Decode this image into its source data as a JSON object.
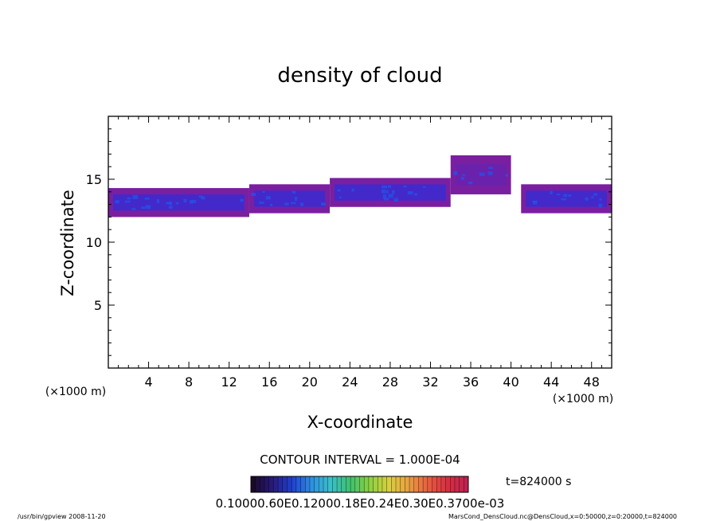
{
  "chart_data": {
    "type": "heatmap",
    "title": "density of cloud",
    "xlabel": "X-coordinate",
    "ylabel": "Z-coordinate",
    "x_unit_left": "(×1000 m)",
    "x_unit_right": "(×1000 m)",
    "xlim": [
      0,
      50
    ],
    "ylim": [
      0,
      20
    ],
    "xticks": [
      4,
      8,
      12,
      16,
      20,
      24,
      28,
      32,
      36,
      40,
      44,
      48
    ],
    "yticks": [
      5,
      10,
      15
    ],
    "contour_interval": "CONTOUR INTERVAL = 1.000E-04",
    "time_label": "t=824000 s",
    "colorbar_labels": [
      "0.1000E-05",
      "0.6000E-04",
      "0.1200E-03",
      "0.1800E-03",
      "0.2400E-03",
      "0.3000E-03",
      "0.3700E-03"
    ],
    "colorbar_label_text": "0.10000.60E0.12000.18E0.24E0.30E0.3700e-03",
    "cloud_bands": [
      {
        "x0": 0,
        "x1": 14,
        "z0": 12.0,
        "z1": 14.3
      },
      {
        "x0": 14,
        "x1": 22,
        "z0": 12.3,
        "z1": 14.6
      },
      {
        "x0": 22,
        "x1": 34,
        "z0": 12.8,
        "z1": 15.1
      },
      {
        "x0": 34,
        "x1": 40,
        "z0": 13.8,
        "z1": 16.9
      },
      {
        "x0": 41,
        "x1": 50,
        "z0": 12.3,
        "z1": 14.6
      }
    ],
    "colors": {
      "low": "#7a1fa0",
      "mid": "#3a2bd0",
      "high": "#2650e8"
    }
  },
  "footer": {
    "left": "/usr/bin/gpview   2008-11-20",
    "right": "MarsCond_DensCloud.nc@DensCloud,x=0:50000,z=0:20000,t=824000"
  }
}
